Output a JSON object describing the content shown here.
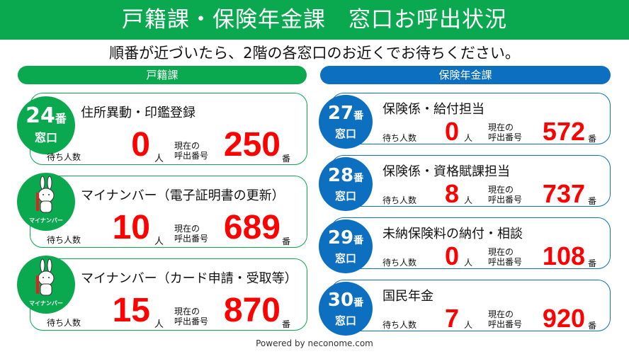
{
  "header": {
    "title": "戸籍課・保険年金課　窓口お呼出状況"
  },
  "subtitle": "順番が近づいたら、2階の各窓口のお近くでお待ちください。",
  "colors": {
    "green": "#0aa84f",
    "blue": "#0d6fc0",
    "number": "#ff0000"
  },
  "labels": {
    "waiting": "待ち人数",
    "person_unit": "人",
    "current_line1": "現在の",
    "current_line2": "呼出番号",
    "number_unit": "番",
    "window": "窓口",
    "ban": "番",
    "mascot": "マイナンバー"
  },
  "left": {
    "section": "戸籍課",
    "cards": [
      {
        "window": "24",
        "title": "住所異動・印鑑登録",
        "waiting": "0",
        "current": "250",
        "icon": "window-badge"
      },
      {
        "window": "",
        "title": "マイナンバー（電子証明書の更新）",
        "waiting": "10",
        "current": "689",
        "icon": "mynumber-rabbit-mascot"
      },
      {
        "window": "",
        "title": "マイナンバー（カード申請・受取等）",
        "waiting": "15",
        "current": "870",
        "icon": "mynumber-rabbit-mascot"
      }
    ]
  },
  "right": {
    "section": "保険年金課",
    "cards": [
      {
        "window": "27",
        "title": "保険係・給付担当",
        "waiting": "0",
        "current": "572"
      },
      {
        "window": "28",
        "title": "保険係・資格賦課担当",
        "waiting": "8",
        "current": "737"
      },
      {
        "window": "29",
        "title": "未納保険料の納付・相談",
        "waiting": "0",
        "current": "108"
      },
      {
        "window": "30",
        "title": "国民年金",
        "waiting": "7",
        "current": "920"
      }
    ]
  },
  "footer": "Powered by neconome.com"
}
